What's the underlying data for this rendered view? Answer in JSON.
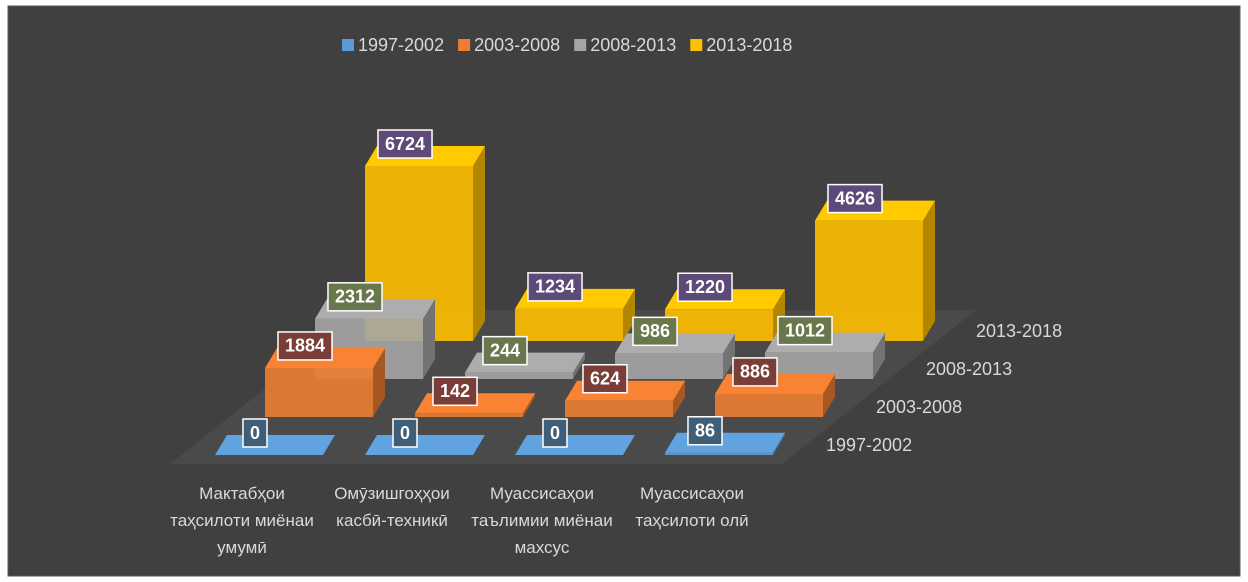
{
  "chart_data": {
    "type": "bar3d",
    "categories": [
      "Мактабҳои таҳсилоти миёнаи умумӣ",
      "Омӯзишгоҳҳои касбӣ-техникӣ",
      "Муассисаҳои таълимии миёнаи махсус",
      "Муассисаҳои таҳсилоти олӣ"
    ],
    "series": [
      {
        "name": "1997-2002",
        "color": "#5b9bd5",
        "label_color": "#3f5f78",
        "values": [
          0,
          0,
          0,
          86
        ]
      },
      {
        "name": "2003-2008",
        "color": "#ed7d31",
        "label_color": "#7a3d38",
        "values": [
          1884,
          142,
          624,
          886
        ]
      },
      {
        "name": "2008-2013",
        "color": "#a5a5a5",
        "label_color": "#69774d",
        "values": [
          2312,
          244,
          986,
          1012
        ]
      },
      {
        "name": "2013-2018",
        "color": "#ffc000",
        "label_color": "#5e4a78",
        "values": [
          6724,
          1234,
          1220,
          4626
        ]
      }
    ],
    "legend": "top"
  }
}
